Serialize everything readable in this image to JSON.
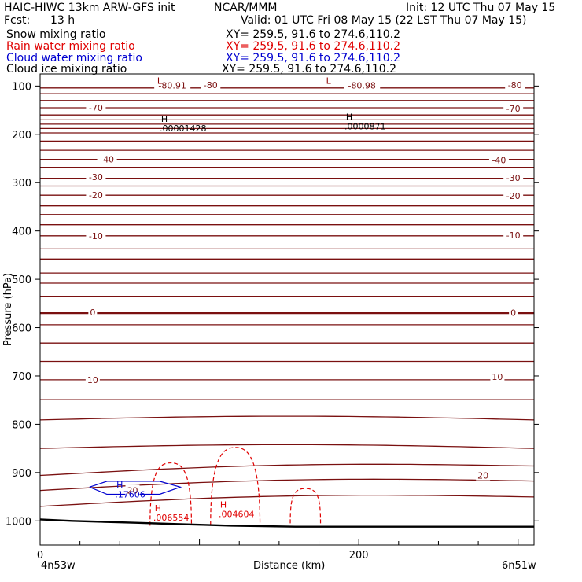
{
  "header": {
    "title": "HAIC-HIWC 13km ARW-GFS init",
    "org": "NCAR/MMM",
    "init": "Init: 12 UTC Thu 07 May 15",
    "fcst_label": "Fcst:",
    "fcst_value": "13 h",
    "valid": "Valid: 01 UTC Fri 08 May 15 (22 LST Thu 07 May 15)"
  },
  "legend": [
    {
      "label": "Snow mixing ratio",
      "xy": "XY= 259.5, 91.6 to 274.6,110.2",
      "color": "#000000"
    },
    {
      "label": "Rain water mixing ratio",
      "xy": "XY= 259.5, 91.6 to 274.6,110.2",
      "color": "#e00000"
    },
    {
      "label": "Cloud water mixing ratio",
      "xy": "XY= 259.5, 91.6 to 274.6,110.2",
      "color": "#0000d0"
    },
    {
      "label": "Cloud ice mixing ratio",
      "xy": "XY= 259.5, 91.6 to 274.6,110.2",
      "color": "#000000"
    }
  ],
  "bottom": {
    "left_endpoint": "4n53w",
    "right_endpoint": "6n51w"
  },
  "chart_data": {
    "type": "line",
    "xlabel": "Distance (km)",
    "ylabel": "Pressure (hPa)",
    "xlim": [
      0,
      310
    ],
    "ylim": [
      1050,
      75
    ],
    "x_ticks": [
      0,
      200
    ],
    "y_ticks": [
      100,
      200,
      300,
      400,
      500,
      600,
      700,
      800,
      900,
      1000
    ],
    "temperature_labels": [
      {
        "text": "-80.91",
        "x": 83,
        "p": 99
      },
      {
        "text": "-80",
        "x": 107,
        "p": 98
      },
      {
        "text": "-80.98",
        "x": 202,
        "p": 99
      },
      {
        "text": "-80",
        "x": 298,
        "p": 98
      },
      {
        "text": "-70",
        "x": 35,
        "p": 145
      },
      {
        "text": "-70",
        "x": 297,
        "p": 147
      },
      {
        "text": "-40",
        "x": 42,
        "p": 252
      },
      {
        "text": "-40",
        "x": 288,
        "p": 253
      },
      {
        "text": "-30",
        "x": 35,
        "p": 288
      },
      {
        "text": "-30",
        "x": 297,
        "p": 290
      },
      {
        "text": "-20",
        "x": 35,
        "p": 326
      },
      {
        "text": "-20",
        "x": 297,
        "p": 327
      },
      {
        "text": "-10",
        "x": 35,
        "p": 410
      },
      {
        "text": "-10",
        "x": 297,
        "p": 409
      },
      {
        "text": "0",
        "x": 33,
        "p": 568
      },
      {
        "text": "0",
        "x": 297,
        "p": 569
      },
      {
        "text": "10",
        "x": 33,
        "p": 708
      },
      {
        "text": "10",
        "x": 287,
        "p": 702
      },
      {
        "text": "20",
        "x": 278,
        "p": 906
      },
      {
        "text": "20",
        "x": 58,
        "p": 937
      }
    ],
    "extrema": [
      {
        "kind": "L",
        "value": "",
        "x": 75,
        "p": 95,
        "color": "#8b0000"
      },
      {
        "kind": "L",
        "value": "",
        "x": 181,
        "p": 95,
        "color": "#8b0000"
      },
      {
        "kind": "H",
        "value": ".00001428",
        "x": 78,
        "p": 174,
        "color": "#000000"
      },
      {
        "kind": "H",
        "value": ".0000871",
        "x": 194,
        "p": 170,
        "color": "#000000"
      },
      {
        "kind": "H",
        "value": ".17606",
        "x": 50,
        "p": 932,
        "color": "#0000d0"
      },
      {
        "kind": "H",
        "value": ".006554",
        "x": 74,
        "p": 980,
        "color": "#e00000"
      },
      {
        "kind": "H",
        "value": ".004604",
        "x": 115,
        "p": 973,
        "color": "#e00000"
      }
    ],
    "series": [
      {
        "name": "Temperature isotherms",
        "color": "#7a1010",
        "style": "solid",
        "levels_hPa": [
          104,
          116,
          130,
          145,
          160,
          170,
          179,
          188,
          197,
          214,
          233,
          252,
          268,
          291,
          307,
          326,
          348,
          366,
          387,
          410,
          437,
          458,
          487,
          508,
          535,
          570,
          594,
          632,
          670,
          708,
          749,
          791,
          850,
          906,
          937,
          970
        ]
      },
      {
        "name": "Terrain",
        "color": "#000000",
        "style": "solid",
        "x": [
          0,
          20,
          40,
          60,
          80,
          100,
          120,
          140,
          160,
          200,
          250,
          310
        ],
        "p": [
          997,
          1000,
          1002,
          1004,
          1006,
          1008,
          1010,
          1011,
          1012,
          1012,
          1012,
          1012
        ]
      },
      {
        "name": "Rain water mixing ratio contours",
        "color": "#e00000",
        "style": "dashed"
      },
      {
        "name": "Cloud water mixing ratio contours",
        "color": "#0000d0",
        "style": "solid"
      }
    ]
  }
}
